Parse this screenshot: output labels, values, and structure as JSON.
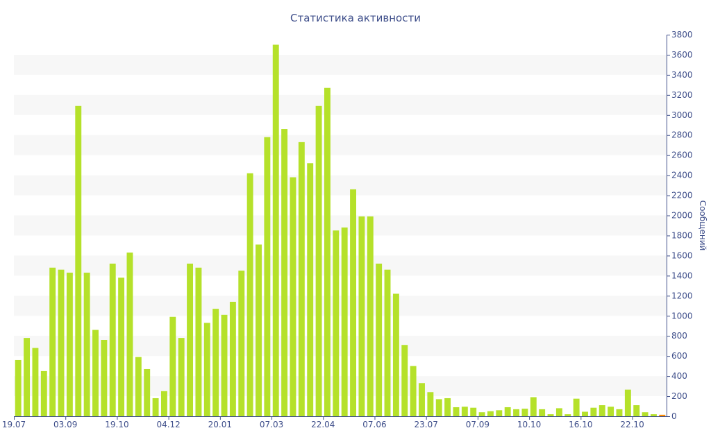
{
  "chart_data": {
    "type": "bar",
    "title": "Статистика активности",
    "ylabel": "Сообщений",
    "xlabel": "",
    "ylim": [
      0,
      3800
    ],
    "ytick_step": 200,
    "grid": "alternating-bands",
    "x_tick_labels": [
      {
        "label": "19.07",
        "index": 0
      },
      {
        "label": "03.09",
        "index": 6
      },
      {
        "label": "19.10",
        "index": 12
      },
      {
        "label": "04.12",
        "index": 18
      },
      {
        "label": "20.01",
        "index": 24
      },
      {
        "label": "07.03",
        "index": 30
      },
      {
        "label": "22.04",
        "index": 36
      },
      {
        "label": "07.06",
        "index": 42
      },
      {
        "label": "23.07",
        "index": 48
      },
      {
        "label": "07.09",
        "index": 54
      },
      {
        "label": "10.10",
        "index": 60
      },
      {
        "label": "16.10",
        "index": 66
      },
      {
        "label": "22.10",
        "index": 72
      }
    ],
    "values": [
      560,
      780,
      680,
      450,
      1480,
      1460,
      1430,
      3090,
      1430,
      860,
      760,
      1520,
      1380,
      1630,
      590,
      470,
      180,
      250,
      990,
      780,
      1520,
      1480,
      930,
      1070,
      1010,
      1140,
      1450,
      2420,
      1710,
      2780,
      3700,
      2860,
      2380,
      2730,
      2520,
      3090,
      3270,
      1850,
      1880,
      2260,
      1990,
      1990,
      1520,
      1460,
      1220,
      710,
      500,
      330,
      240,
      170,
      180,
      90,
      95,
      85,
      40,
      50,
      60,
      90,
      70,
      75,
      190,
      70,
      20,
      80,
      20,
      175,
      45,
      85,
      110,
      95,
      70,
      265,
      110,
      40,
      20,
      15
    ],
    "colors": {
      "bar": "#b5e12a",
      "last_bar": "#ff8c00",
      "band": "#f7f7f7",
      "axis": "#3e4e8a",
      "text": "#3e4e8a"
    }
  }
}
